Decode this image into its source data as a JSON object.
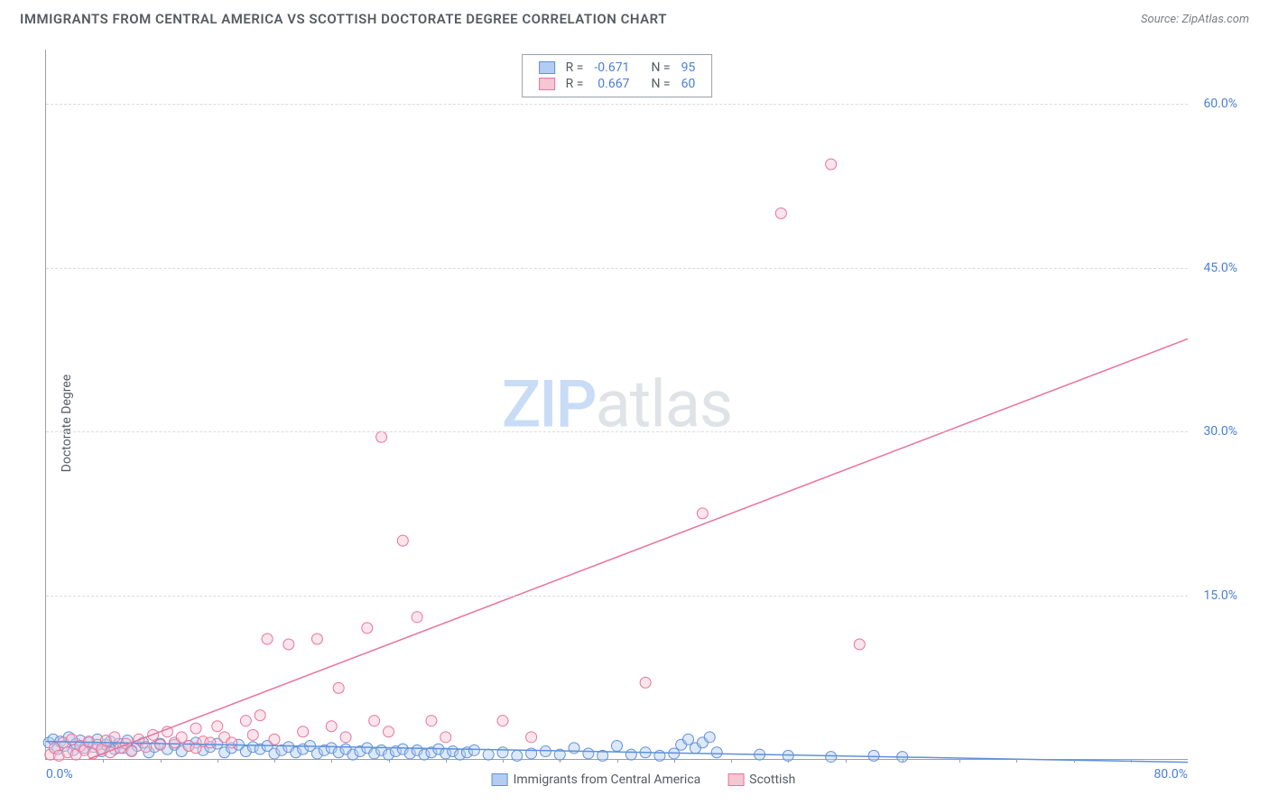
{
  "header": {
    "title": "IMMIGRANTS FROM CENTRAL AMERICA VS SCOTTISH DOCTORATE DEGREE CORRELATION CHART",
    "source_prefix": "Source: ",
    "source_name": "ZipAtlas.com"
  },
  "watermark": {
    "part1": "ZIP",
    "part2": "atlas"
  },
  "chart": {
    "type": "scatter",
    "ylabel": "Doctorate Degree",
    "xlim": [
      0,
      80
    ],
    "ylim": [
      0,
      65
    ],
    "x_ticks": [
      {
        "pos": 0,
        "label": "0.0%"
      },
      {
        "pos": 80,
        "label": "80.0%"
      }
    ],
    "y_ticks": [
      {
        "pos": 15,
        "label": "15.0%"
      },
      {
        "pos": 30,
        "label": "30.0%"
      },
      {
        "pos": 45,
        "label": "45.0%"
      },
      {
        "pos": 60,
        "label": "60.0%"
      }
    ],
    "x_minor_ticks": [
      4,
      8,
      12,
      16,
      20,
      24,
      28,
      32,
      36,
      40,
      44,
      48,
      52,
      56,
      60,
      64,
      68,
      72,
      76
    ],
    "background_color": "#ffffff",
    "grid_color": "#d8dce0",
    "axis_color": "#9aa0a6",
    "label_color": "#555b63",
    "tick_label_color": "#4a7fd8",
    "series": [
      {
        "name": "Immigrants from Central America",
        "fill_color": "#b3cdf2",
        "stroke_color": "#5f91d8",
        "fill_opacity": 0.45,
        "marker_radius": 6,
        "line": {
          "x1": 0,
          "y1": 1.6,
          "x2": 80,
          "y2": -0.3,
          "color": "#5f91d8",
          "width": 1.5
        },
        "R": "-0.671",
        "N": "95",
        "points": [
          [
            0.2,
            1.5
          ],
          [
            0.5,
            1.8
          ],
          [
            0.8,
            0.9
          ],
          [
            1.0,
            1.6
          ],
          [
            1.3,
            1.2
          ],
          [
            1.6,
            2.0
          ],
          [
            1.9,
            0.8
          ],
          [
            2.1,
            1.4
          ],
          [
            2.4,
            1.7
          ],
          [
            2.7,
            1.0
          ],
          [
            3.0,
            1.5
          ],
          [
            3.3,
            1.1
          ],
          [
            3.6,
            1.8
          ],
          [
            3.9,
            0.7
          ],
          [
            4.2,
            1.3
          ],
          [
            4.5,
            1.6
          ],
          [
            4.8,
            0.9
          ],
          [
            5.1,
            1.4
          ],
          [
            5.4,
            1.0
          ],
          [
            5.7,
            1.7
          ],
          [
            6.0,
            0.8
          ],
          [
            6.4,
            1.2
          ],
          [
            6.8,
            1.5
          ],
          [
            7.2,
            0.6
          ],
          [
            7.6,
            1.1
          ],
          [
            8.0,
            1.4
          ],
          [
            8.5,
            0.9
          ],
          [
            9.0,
            1.3
          ],
          [
            9.5,
            0.7
          ],
          [
            10.0,
            1.2
          ],
          [
            10.5,
            1.5
          ],
          [
            11.0,
            0.8
          ],
          [
            11.5,
            1.1
          ],
          [
            12.0,
            1.4
          ],
          [
            12.5,
            0.6
          ],
          [
            13.0,
            1.0
          ],
          [
            13.5,
            1.3
          ],
          [
            14.0,
            0.7
          ],
          [
            14.5,
            1.1
          ],
          [
            15.0,
            0.9
          ],
          [
            15.5,
            1.2
          ],
          [
            16.0,
            0.5
          ],
          [
            16.5,
            0.8
          ],
          [
            17.0,
            1.1
          ],
          [
            17.5,
            0.6
          ],
          [
            18.0,
            0.9
          ],
          [
            18.5,
            1.2
          ],
          [
            19.0,
            0.5
          ],
          [
            19.5,
            0.8
          ],
          [
            20.0,
            1.0
          ],
          [
            20.5,
            0.6
          ],
          [
            21.0,
            0.9
          ],
          [
            21.5,
            0.4
          ],
          [
            22.0,
            0.7
          ],
          [
            22.5,
            1.0
          ],
          [
            23.0,
            0.5
          ],
          [
            23.5,
            0.8
          ],
          [
            24.0,
            0.4
          ],
          [
            24.5,
            0.7
          ],
          [
            25.0,
            0.9
          ],
          [
            25.5,
            0.5
          ],
          [
            26.0,
            0.8
          ],
          [
            26.5,
            0.4
          ],
          [
            27.0,
            0.6
          ],
          [
            27.5,
            0.9
          ],
          [
            28.0,
            0.5
          ],
          [
            28.5,
            0.7
          ],
          [
            29.0,
            0.4
          ],
          [
            29.5,
            0.6
          ],
          [
            30.0,
            0.8
          ],
          [
            31.0,
            0.4
          ],
          [
            32.0,
            0.6
          ],
          [
            33.0,
            0.3
          ],
          [
            34.0,
            0.5
          ],
          [
            35.0,
            0.7
          ],
          [
            36.0,
            0.4
          ],
          [
            37.0,
            1.0
          ],
          [
            38.0,
            0.5
          ],
          [
            39.0,
            0.3
          ],
          [
            40.0,
            1.2
          ],
          [
            41.0,
            0.4
          ],
          [
            42.0,
            0.6
          ],
          [
            43.0,
            0.3
          ],
          [
            44.0,
            0.5
          ],
          [
            44.5,
            1.3
          ],
          [
            45.0,
            1.8
          ],
          [
            45.5,
            1.0
          ],
          [
            46.0,
            1.5
          ],
          [
            46.5,
            2.0
          ],
          [
            47.0,
            0.6
          ],
          [
            50.0,
            0.4
          ],
          [
            52.0,
            0.3
          ],
          [
            55.0,
            0.2
          ],
          [
            58.0,
            0.3
          ],
          [
            60.0,
            0.2
          ]
        ]
      },
      {
        "name": "Scottish",
        "fill_color": "#f5c6d3",
        "stroke_color": "#e8749b",
        "fill_opacity": 0.45,
        "marker_radius": 6,
        "line": {
          "x1": 3,
          "y1": 0,
          "x2": 80,
          "y2": 38.5,
          "color": "#e8749b",
          "width": 1.5
        },
        "R": "0.667",
        "N": "60",
        "points": [
          [
            0.3,
            0.4
          ],
          [
            0.6,
            1.0
          ],
          [
            0.9,
            0.3
          ],
          [
            1.2,
            1.5
          ],
          [
            1.5,
            0.6
          ],
          [
            1.8,
            1.8
          ],
          [
            2.1,
            0.4
          ],
          [
            2.4,
            1.2
          ],
          [
            2.7,
            0.8
          ],
          [
            3.0,
            1.6
          ],
          [
            3.3,
            0.5
          ],
          [
            3.6,
            1.3
          ],
          [
            3.9,
            0.9
          ],
          [
            4.2,
            1.7
          ],
          [
            4.5,
            0.6
          ],
          [
            4.8,
            2.0
          ],
          [
            5.2,
            1.0
          ],
          [
            5.6,
            1.4
          ],
          [
            6.0,
            0.7
          ],
          [
            6.5,
            1.8
          ],
          [
            7.0,
            1.1
          ],
          [
            7.5,
            2.2
          ],
          [
            8.0,
            1.3
          ],
          [
            8.5,
            2.5
          ],
          [
            9.0,
            1.5
          ],
          [
            9.5,
            2.0
          ],
          [
            10.0,
            1.2
          ],
          [
            10.5,
            2.8
          ],
          [
            11.0,
            1.6
          ],
          [
            12.0,
            3.0
          ],
          [
            12.5,
            2.0
          ],
          [
            13.0,
            1.5
          ],
          [
            14.0,
            3.5
          ],
          [
            14.5,
            2.2
          ],
          [
            15.0,
            4.0
          ],
          [
            15.5,
            11.0
          ],
          [
            16.0,
            1.8
          ],
          [
            17.0,
            10.5
          ],
          [
            18.0,
            2.5
          ],
          [
            19.0,
            11.0
          ],
          [
            20.0,
            3.0
          ],
          [
            20.5,
            6.5
          ],
          [
            21.0,
            2.0
          ],
          [
            22.5,
            12.0
          ],
          [
            23.0,
            3.5
          ],
          [
            23.5,
            29.5
          ],
          [
            24.0,
            2.5
          ],
          [
            25.0,
            20.0
          ],
          [
            26.0,
            13.0
          ],
          [
            27.0,
            3.5
          ],
          [
            28.0,
            2.0
          ],
          [
            32.0,
            3.5
          ],
          [
            34.0,
            2.0
          ],
          [
            42.0,
            7.0
          ],
          [
            46.0,
            22.5
          ],
          [
            51.5,
            50.0
          ],
          [
            55.0,
            54.5
          ],
          [
            57.0,
            10.5
          ],
          [
            10.5,
            1.0
          ],
          [
            11.5,
            1.5
          ]
        ]
      }
    ]
  },
  "legend_top": {
    "r_label": "R =",
    "n_label": "N ="
  },
  "legend_bottom": {
    "items": [
      "Immigrants from Central America",
      "Scottish"
    ]
  }
}
